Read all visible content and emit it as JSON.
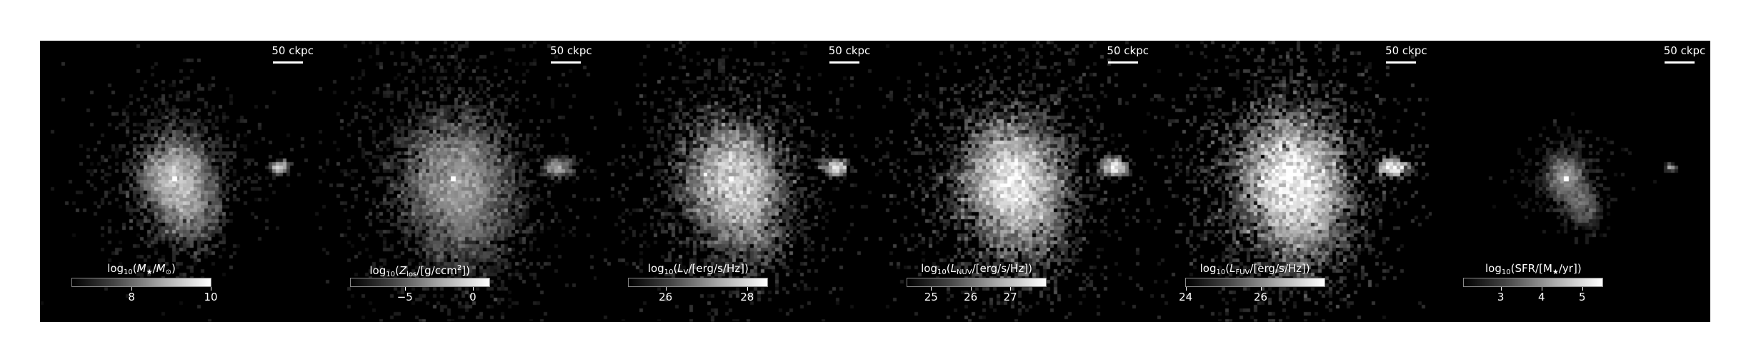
{
  "scalebar_text": "50 ckpc",
  "panels": [
    {
      "quantity_parts": [
        "log",
        "10",
        "(",
        "M",
        "★",
        "/",
        "M",
        "⊙",
        ")"
      ],
      "colorbar_range": [
        6.5,
        10
      ],
      "ticks": [
        {
          "value": 8,
          "label": "8"
        },
        {
          "value": 10,
          "label": "10"
        }
      ],
      "intensity": 0.75,
      "spread": 1.0
    },
    {
      "quantity_parts": [
        "log",
        "10",
        "(",
        "Z",
        "los",
        "/[g/ccm",
        "2",
        "])"
      ],
      "colorbar_range": [
        -9.0,
        1.2
      ],
      "ticks": [
        {
          "value": -5,
          "label": "−5"
        },
        {
          "value": 0,
          "label": "0"
        }
      ],
      "intensity": 0.6,
      "spread": 1.6
    },
    {
      "quantity_parts": [
        "log",
        "10",
        "(",
        "L",
        "V",
        "/[erg/s/Hz])"
      ],
      "colorbar_range": [
        25.1,
        28.5
      ],
      "ticks": [
        {
          "value": 26,
          "label": "26"
        },
        {
          "value": 28,
          "label": "28"
        }
      ],
      "intensity": 0.85,
      "spread": 1.4
    },
    {
      "quantity_parts": [
        "log",
        "10",
        "(",
        "L",
        "NUV",
        "/[erg/s/Hz])"
      ],
      "colorbar_range": [
        24.4,
        27.9
      ],
      "ticks": [
        {
          "value": 25,
          "label": "25"
        },
        {
          "value": 26,
          "label": "26"
        },
        {
          "value": 27,
          "label": "27"
        }
      ],
      "intensity": 0.95,
      "spread": 1.5
    },
    {
      "quantity_parts": [
        "log",
        "10",
        "(",
        "L",
        "FUV",
        "/[erg/s/Hz])"
      ],
      "colorbar_range": [
        24.0,
        27.7
      ],
      "ticks": [
        {
          "value": 24,
          "label": "24"
        },
        {
          "value": 26,
          "label": "26"
        }
      ],
      "intensity": 1.0,
      "spread": 1.6
    },
    {
      "quantity_parts": [
        "log",
        "10",
        "(SFR/[M",
        "★",
        "/yr])"
      ],
      "colorbar_range": [
        2.1,
        5.5
      ],
      "ticks": [
        {
          "value": 3,
          "label": "3"
        },
        {
          "value": 4,
          "label": "4"
        },
        {
          "value": 5,
          "label": "5"
        }
      ],
      "intensity": 0.55,
      "spread": 0.5
    }
  ]
}
